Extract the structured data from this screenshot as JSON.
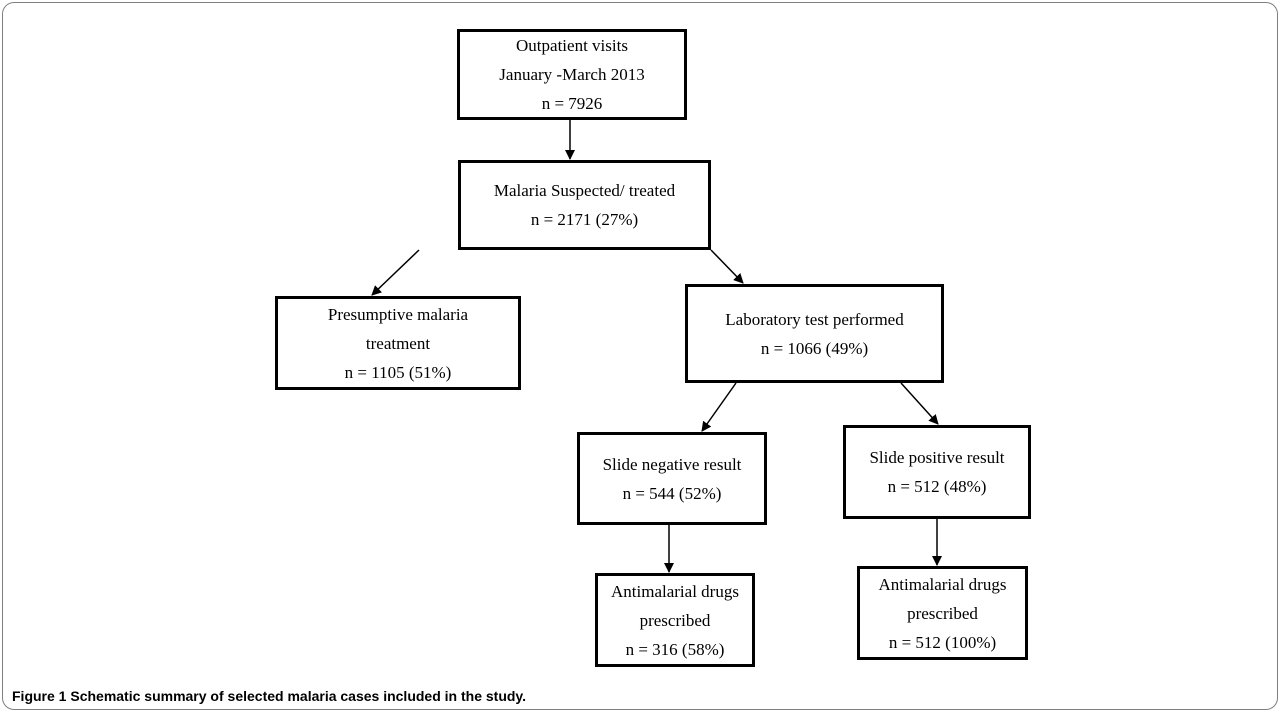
{
  "boxes": {
    "outpatient": [
      "Outpatient visits",
      "January -March 2013",
      "n = 7926"
    ],
    "suspected": [
      "Malaria Suspected/ treated",
      "n = 2171 (27%)"
    ],
    "presumptive": [
      "Presumptive  malaria",
      "treatment",
      "n = 1105 (51%)"
    ],
    "lab": [
      "Laboratory test performed",
      "n = 1066 (49%)"
    ],
    "negative": [
      "Slide negative result",
      "n = 544 (52%)"
    ],
    "positive": [
      "Slide positive result",
      "n = 512 (48%)"
    ],
    "neg_drugs": [
      "Antimalarial drugs",
      "prescribed",
      "n = 316 (58%)"
    ],
    "pos_drugs": [
      "Antimalarial drugs",
      "prescribed",
      "n = 512 (100%)"
    ]
  },
  "caption": {
    "label": "Figure 1",
    "text": "Schematic summary of selected malaria cases included in the study."
  }
}
